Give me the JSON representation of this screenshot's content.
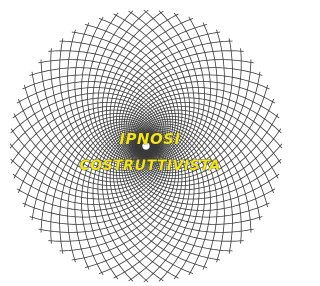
{
  "logo": {
    "line1": "IPNOSI",
    "line2": "COSTRUTTIVISTA"
  }
}
